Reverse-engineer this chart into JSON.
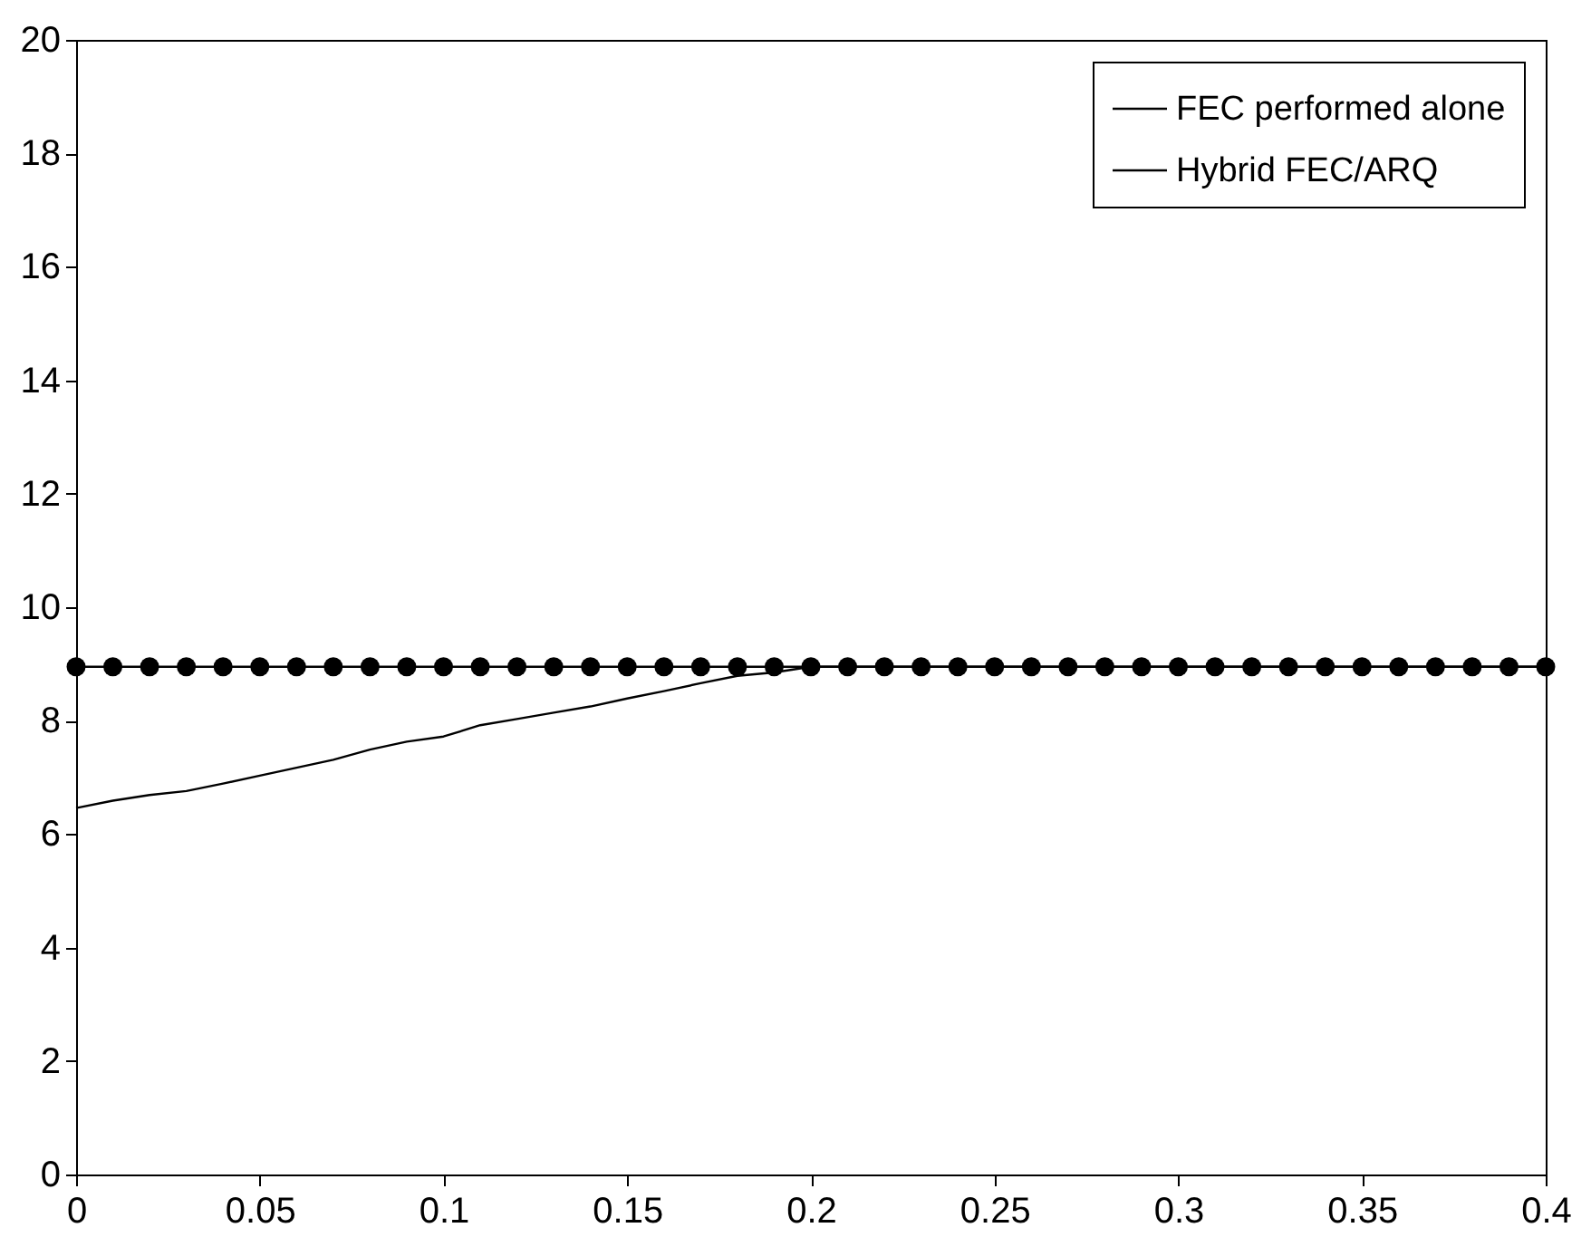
{
  "chart_data": {
    "type": "line",
    "xlim": [
      0,
      0.4
    ],
    "xticks": [
      0,
      0.05,
      0.1,
      0.15,
      0.2,
      0.25,
      0.3,
      0.35,
      0.4
    ],
    "ylim": [
      0,
      20
    ],
    "yticks": [
      0,
      2,
      4,
      6,
      8,
      10,
      12,
      14,
      16,
      18,
      20
    ],
    "grid": false,
    "legend": "top right",
    "line_style": "solid",
    "series": [
      {
        "name": "FEC performed alone",
        "color": "#000000",
        "marker": "circle",
        "x": [
          0,
          0.01,
          0.02,
          0.03,
          0.04,
          0.05,
          0.06,
          0.07,
          0.08,
          0.09,
          0.1,
          0.11,
          0.12,
          0.13,
          0.14,
          0.15,
          0.16,
          0.17,
          0.18,
          0.19,
          0.2,
          0.21,
          0.22,
          0.23,
          0.24,
          0.25,
          0.26,
          0.27,
          0.28,
          0.29,
          0.3,
          0.31,
          0.32,
          0.33,
          0.34,
          0.35,
          0.36,
          0.37,
          0.38,
          0.39,
          0.4
        ],
        "values": [
          8.95,
          8.95,
          8.95,
          8.95,
          8.95,
          8.95,
          8.95,
          8.95,
          8.95,
          8.95,
          8.95,
          8.95,
          8.95,
          8.95,
          8.95,
          8.95,
          8.95,
          8.95,
          8.95,
          8.95,
          8.95,
          8.95,
          8.95,
          8.95,
          8.95,
          8.95,
          8.95,
          8.95,
          8.95,
          8.95,
          8.95,
          8.95,
          8.95,
          8.95,
          8.95,
          8.95,
          8.95,
          8.95,
          8.95,
          8.95,
          8.95
        ]
      },
      {
        "name": "Hybrid FEC/ARQ",
        "color": "#000000",
        "marker": "none",
        "x": [
          0,
          0.01,
          0.02,
          0.03,
          0.04,
          0.05,
          0.06,
          0.07,
          0.08,
          0.09,
          0.1,
          0.11,
          0.12,
          0.13,
          0.14,
          0.15,
          0.16,
          0.17,
          0.18,
          0.19,
          0.2,
          0.3,
          0.4
        ],
        "values": [
          6.46,
          6.59,
          6.69,
          6.76,
          6.89,
          7.03,
          7.17,
          7.31,
          7.49,
          7.63,
          7.72,
          7.92,
          8.03,
          8.14,
          8.25,
          8.39,
          8.52,
          8.66,
          8.79,
          8.85,
          8.95,
          8.95,
          8.95
        ]
      }
    ]
  }
}
